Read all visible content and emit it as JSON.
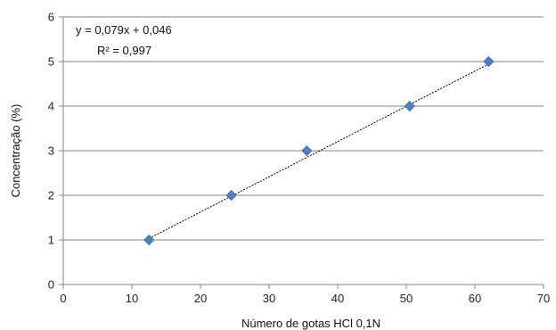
{
  "chart_data": {
    "type": "scatter",
    "title": "",
    "xlabel": "Número de gotas HCl 0,1N",
    "ylabel": "Concentração (%)",
    "xlim": [
      0,
      70
    ],
    "ylim": [
      0,
      6
    ],
    "xticks": [
      0,
      10,
      20,
      30,
      40,
      50,
      60,
      70
    ],
    "yticks": [
      0,
      1,
      2,
      3,
      4,
      5,
      6
    ],
    "grid": "horizontal",
    "series": [
      {
        "points": [
          {
            "x": 12.5,
            "y": 1
          },
          {
            "x": 24.5,
            "y": 2
          },
          {
            "x": 35.5,
            "y": 3
          },
          {
            "x": 50.5,
            "y": 4
          },
          {
            "x": 62,
            "y": 5
          }
        ],
        "color": "#4f81bd",
        "marker": "diamond"
      }
    ],
    "trendline": {
      "type": "linear",
      "style": "dashed",
      "color": "#000000",
      "slope": 0.079,
      "intercept": 0.046,
      "equation_text": "y = 0,079x + 0,046",
      "r2_text": "R² = 0,997"
    }
  }
}
